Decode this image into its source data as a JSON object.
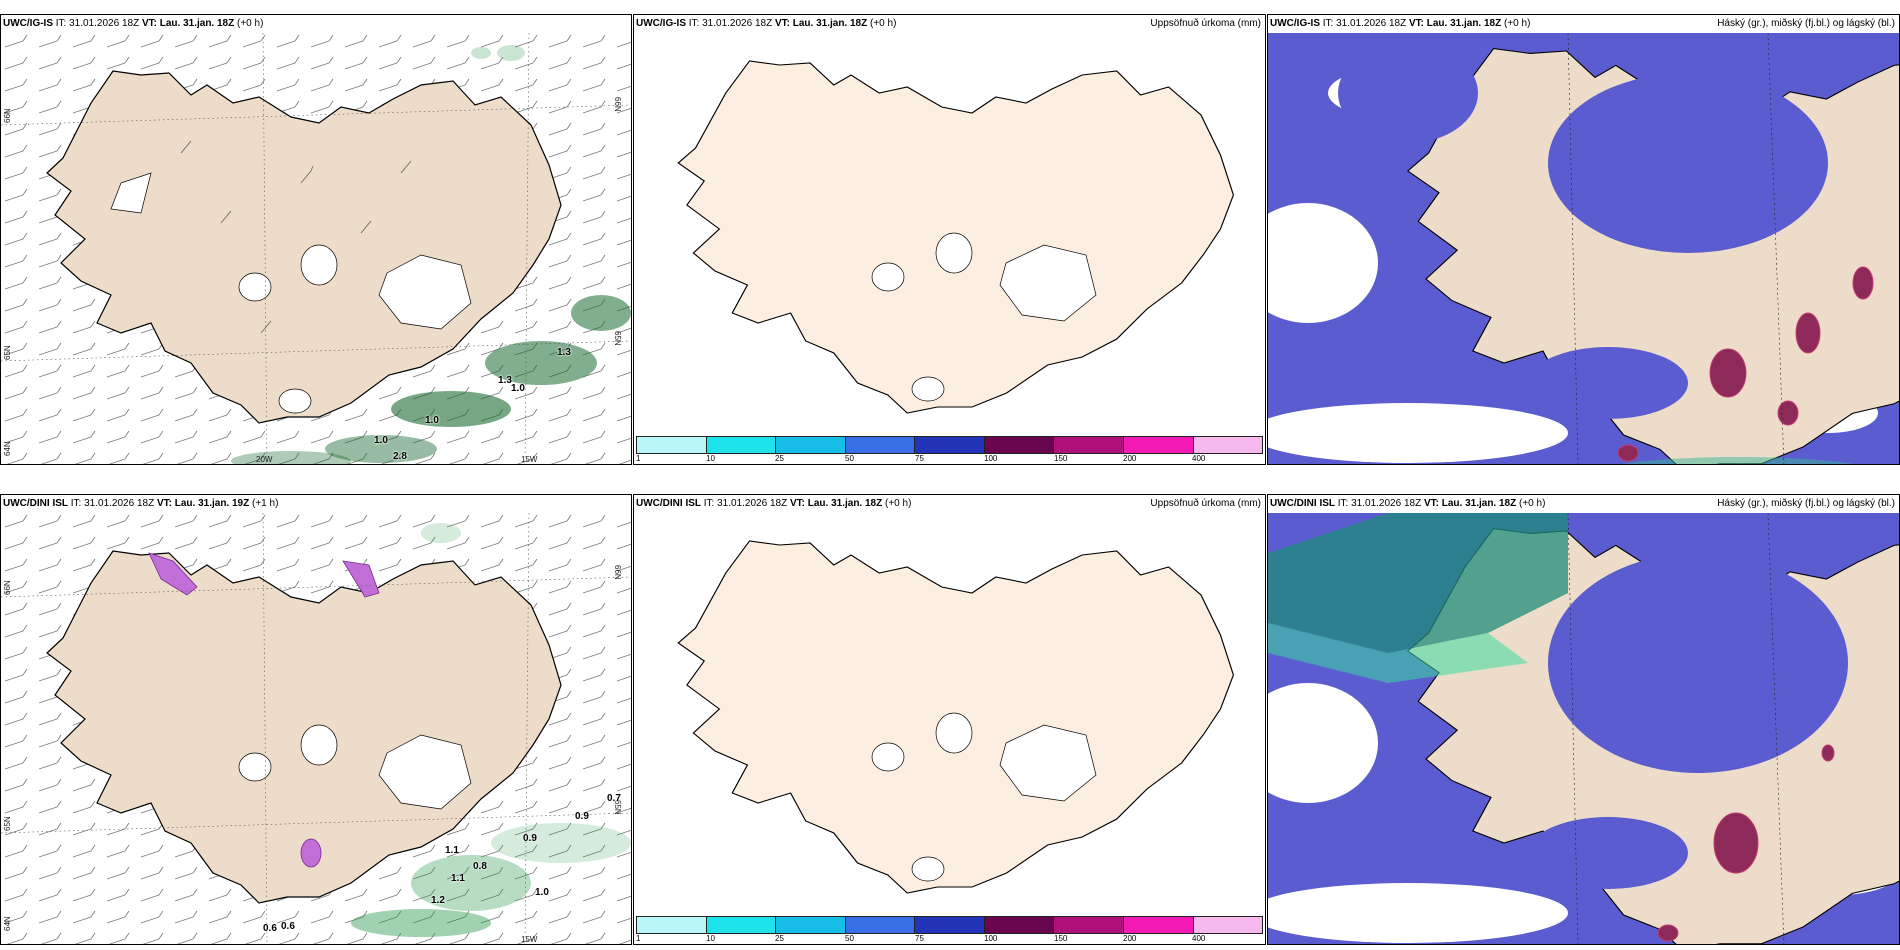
{
  "panels": {
    "top_left": {
      "model": "UWC/IG-IS",
      "it": "IT: 31.01.2026 18Z",
      "vt_label": "VT:",
      "vt": "Lau. 31.jan. 18Z",
      "lead": "(+0 h)"
    },
    "top_mid": {
      "model": "UWC/IG-IS",
      "it": "IT: 31.01.2026 18Z",
      "vt_label": "VT:",
      "vt": "Lau. 31.jan. 18Z",
      "lead": "(+0 h)",
      "right": "Uppsöfnuð úrkoma (mm)"
    },
    "top_right": {
      "model": "UWC/IG-IS",
      "it": "IT: 31.01.2026 18Z",
      "vt_label": "VT:",
      "vt": "Lau. 31.jan. 18Z",
      "lead": "(+0 h)",
      "right": "Háský (gr.), miðský (fj.bl.) og lágský (bl.)"
    },
    "bot_left": {
      "model": "UWC/DINI ISL",
      "it": "IT: 31.01.2026 18Z",
      "vt_label": "VT:",
      "vt": "Lau. 31.jan. 19Z",
      "lead": "(+1 h)"
    },
    "bot_mid": {
      "model": "UWC/DINI ISL",
      "it": "IT: 31.01.2026 18Z",
      "vt_label": "VT:",
      "vt": "Lau. 31.jan. 18Z",
      "lead": "(+0 h)",
      "right": "Uppsöfnuð úrkoma (mm)"
    },
    "bot_right": {
      "model": "UWC/DINI ISL",
      "it": "IT: 31.01.2026 18Z",
      "vt_label": "VT:",
      "vt": "Lau. 31.jan. 18Z",
      "lead": "(+0 h)",
      "right": "Háský (gr.), miðský (fj.bl.) og lágský (bl.)"
    }
  },
  "grid_labels": {
    "lat66": "66N",
    "lat64": "64N",
    "lat65": "65N",
    "lon20": "20W",
    "lon15": "15W"
  },
  "precip_labels_top": [
    "1.0",
    "1.0",
    "1.3",
    "1.3",
    "1.0",
    "2.8"
  ],
  "precip_labels_bottom": [
    "0.7",
    "0.9",
    "0.9",
    "1.1",
    "0.8",
    "1.1",
    "1.2",
    "1.0",
    "0.6",
    "0.6"
  ],
  "colorbar": {
    "ticks": [
      "1",
      "10",
      "25",
      "50",
      "75",
      "100",
      "150",
      "200",
      "400"
    ],
    "colors": [
      "#b9f6f8",
      "#1fe3ea",
      "#17bde6",
      "#3a6ee6",
      "#2234b8",
      "#6a0650",
      "#b0107a",
      "#f21ab3",
      "#f5b9ee"
    ]
  },
  "colors": {
    "land_wind": "#ecdcc9",
    "land_precip": "#fcefe2",
    "high_cloud": "#3a6e78",
    "mid_cloud": "#5a5ccf",
    "low_cloud": "#8e2a5a",
    "rain": "#1e7a3a"
  }
}
